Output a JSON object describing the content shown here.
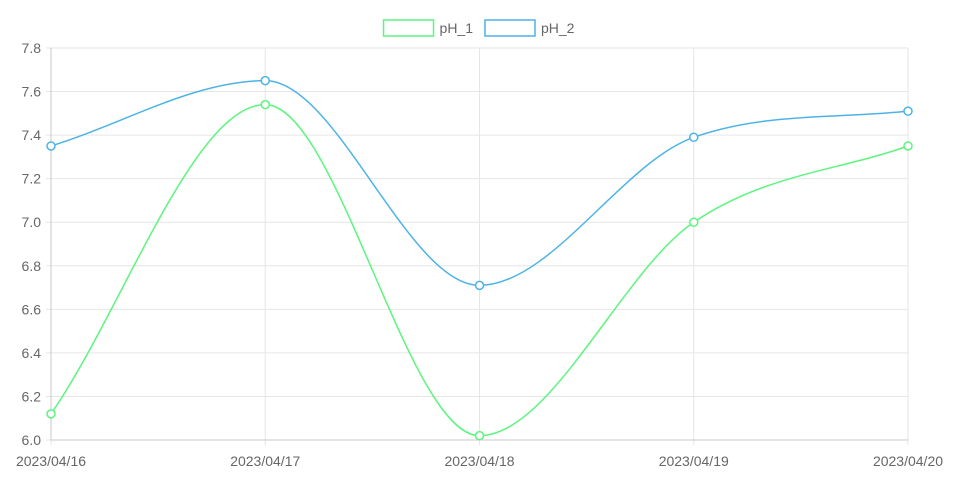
{
  "chart_data": {
    "type": "line",
    "categories": [
      "2023/04/16",
      "2023/04/17",
      "2023/04/18",
      "2023/04/19",
      "2023/04/20"
    ],
    "series": [
      {
        "name": "pH_1",
        "values": [
          6.12,
          7.54,
          6.02,
          7.0,
          7.35
        ],
        "color": "#5cf57f"
      },
      {
        "name": "pH_2",
        "values": [
          7.35,
          7.65,
          6.71,
          7.39,
          7.51
        ],
        "color": "#4db3e6"
      }
    ],
    "ylim": [
      6.0,
      7.8
    ],
    "yticks": [
      "6.0",
      "6.2",
      "6.4",
      "6.6",
      "6.8",
      "7.0",
      "7.2",
      "7.4",
      "7.6",
      "7.8"
    ],
    "grid": true,
    "legend_position": "top-center",
    "smooth": true,
    "markers": "open-circle"
  }
}
